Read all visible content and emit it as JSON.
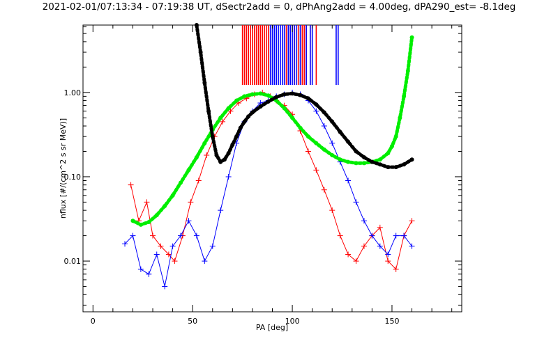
{
  "chart_data": {
    "type": "scatter",
    "title": "2021-02-01/07:13:34 - 07:19:38 UT, dSectr2add = 0, dPhAng2add = 4.00deg, dPA290_est=  -8.1deg",
    "xlabel": "PA [deg]",
    "ylabel": "nflux [#/(cm^2 s sr MeV)]",
    "x_scale": "linear",
    "y_scale": "log",
    "xlim": [
      -5,
      185
    ],
    "ylim": [
      0.0025,
      6.3
    ],
    "x_ticks": [
      0,
      50,
      100,
      150
    ],
    "x_tick_labels": [
      "0",
      "50",
      "100",
      "150"
    ],
    "y_ticks": [
      0.01,
      0.1,
      1.0
    ],
    "y_tick_labels": [
      "0.01",
      "0.10",
      "1.00"
    ],
    "grid": false,
    "colors": {
      "red": "#ff0000",
      "blue": "#0000ff",
      "green": "#00ee00",
      "black": "#000000"
    },
    "rug_ticks": {
      "red_x": [
        75,
        76,
        77,
        78,
        79,
        80,
        81,
        82,
        83,
        84,
        85,
        86,
        87,
        88,
        97,
        98,
        101,
        103,
        105,
        106,
        107,
        109,
        112
      ],
      "blue_x": [
        89,
        90,
        91,
        92,
        93,
        94,
        95,
        96,
        98,
        99,
        100,
        101,
        102,
        104,
        107,
        109,
        110,
        122,
        123
      ]
    },
    "series": [
      {
        "color": "red",
        "style": "lines+crosses",
        "x": [
          19,
          23,
          27,
          30,
          34,
          38,
          41,
          45,
          49,
          53,
          57,
          61,
          65,
          69,
          73,
          77,
          81,
          85,
          89,
          92,
          96,
          100,
          104,
          108,
          112,
          116,
          120,
          124,
          128,
          132,
          136,
          140,
          144,
          148,
          152,
          156,
          160
        ],
        "y": [
          0.08,
          0.03,
          0.05,
          0.02,
          0.015,
          0.012,
          0.01,
          0.02,
          0.05,
          0.09,
          0.18,
          0.3,
          0.45,
          0.6,
          0.75,
          0.85,
          0.95,
          1.0,
          0.9,
          0.8,
          0.7,
          0.55,
          0.35,
          0.2,
          0.12,
          0.07,
          0.04,
          0.02,
          0.012,
          0.01,
          0.015,
          0.02,
          0.025,
          0.01,
          0.008,
          0.02,
          0.03
        ]
      },
      {
        "color": "blue",
        "style": "lines+crosses",
        "x": [
          16,
          20,
          24,
          28,
          32,
          36,
          40,
          44,
          48,
          52,
          56,
          60,
          64,
          68,
          72,
          76,
          80,
          84,
          88,
          92,
          96,
          100,
          104,
          108,
          112,
          116,
          120,
          124,
          128,
          132,
          136,
          140,
          144,
          148,
          152,
          156,
          160
        ],
        "y": [
          0.016,
          0.02,
          0.008,
          0.007,
          0.012,
          0.005,
          0.015,
          0.02,
          0.03,
          0.02,
          0.01,
          0.015,
          0.04,
          0.1,
          0.25,
          0.45,
          0.6,
          0.75,
          0.8,
          0.9,
          0.95,
          1.0,
          0.95,
          0.8,
          0.6,
          0.4,
          0.25,
          0.15,
          0.09,
          0.05,
          0.03,
          0.02,
          0.015,
          0.012,
          0.02,
          0.02,
          0.015
        ]
      },
      {
        "color": "green",
        "style": "thick dots",
        "x": [
          20,
          24,
          28,
          32,
          36,
          40,
          44,
          48,
          52,
          56,
          60,
          64,
          68,
          72,
          76,
          80,
          84,
          88,
          92,
          96,
          100,
          104,
          108,
          112,
          116,
          120,
          124,
          128,
          132,
          136,
          140,
          144,
          148,
          150,
          152,
          154,
          156,
          158,
          160
        ],
        "y": [
          0.03,
          0.027,
          0.029,
          0.035,
          0.045,
          0.06,
          0.085,
          0.12,
          0.17,
          0.25,
          0.36,
          0.5,
          0.65,
          0.8,
          0.9,
          0.95,
          0.97,
          0.92,
          0.8,
          0.65,
          0.5,
          0.38,
          0.3,
          0.25,
          0.21,
          0.18,
          0.16,
          0.15,
          0.145,
          0.145,
          0.15,
          0.16,
          0.19,
          0.23,
          0.3,
          0.5,
          0.9,
          1.8,
          4.5
        ]
      },
      {
        "color": "black",
        "style": "thick dots",
        "x": [
          52,
          54,
          56,
          58,
          60,
          62,
          64,
          66,
          68,
          70,
          72,
          74,
          76,
          78,
          80,
          84,
          88,
          92,
          96,
          100,
          104,
          108,
          112,
          116,
          120,
          124,
          128,
          132,
          136,
          140,
          144,
          148,
          152,
          156,
          160
        ],
        "y": [
          6.3,
          3.0,
          1.3,
          0.6,
          0.3,
          0.18,
          0.15,
          0.16,
          0.19,
          0.24,
          0.3,
          0.38,
          0.45,
          0.52,
          0.58,
          0.68,
          0.78,
          0.88,
          0.95,
          0.97,
          0.93,
          0.85,
          0.72,
          0.58,
          0.45,
          0.34,
          0.26,
          0.2,
          0.17,
          0.15,
          0.14,
          0.13,
          0.13,
          0.14,
          0.16
        ]
      }
    ]
  }
}
